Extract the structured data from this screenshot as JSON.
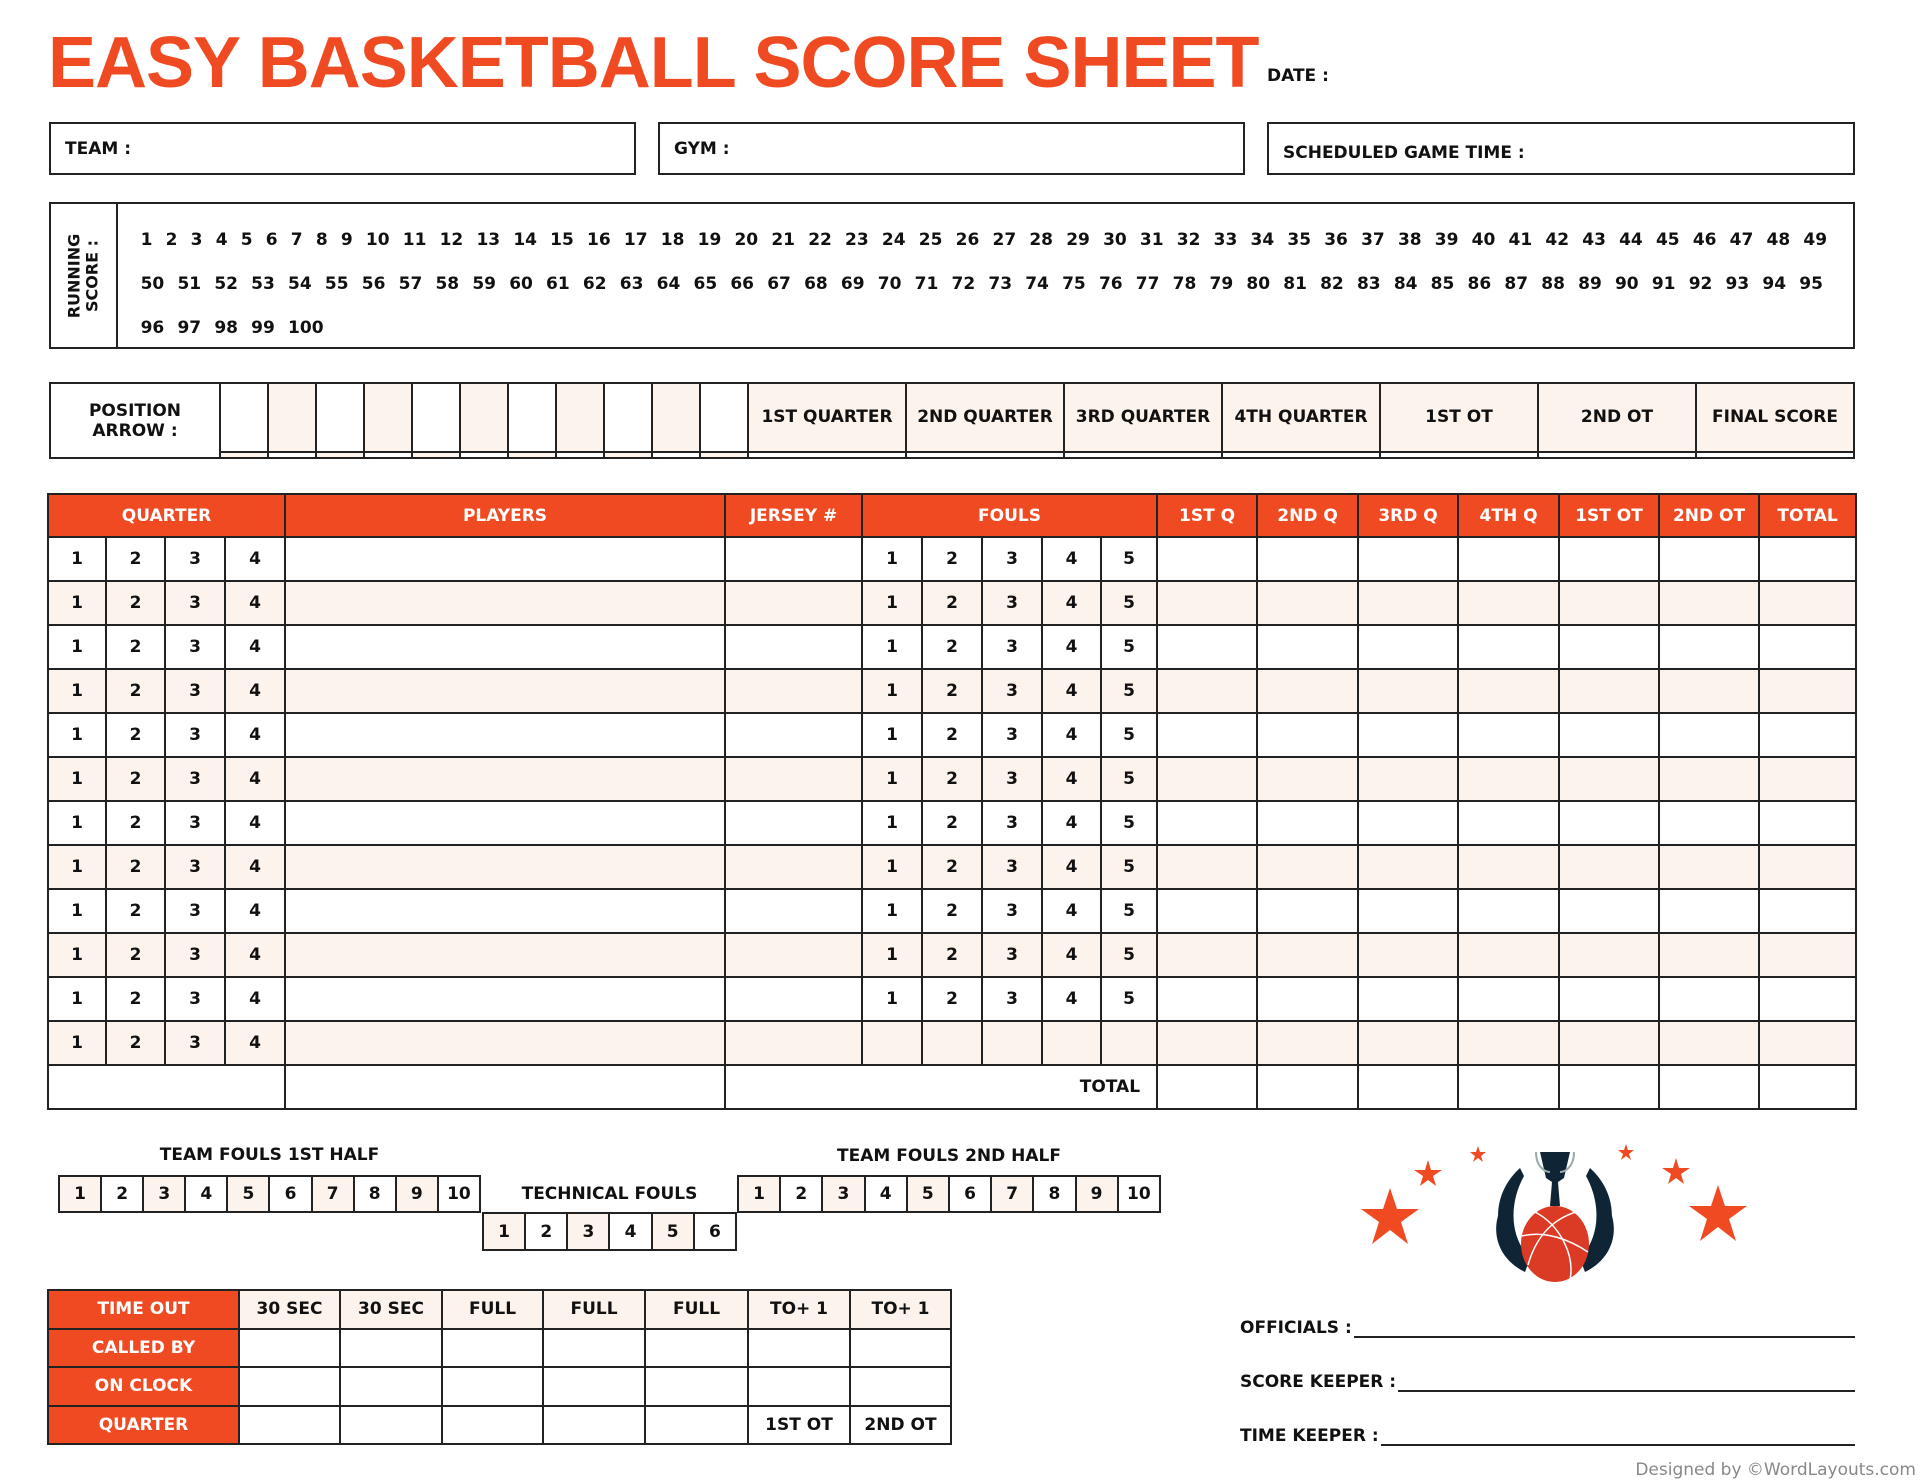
{
  "title": "EASY BASKETBALL SCORE SHEET",
  "date_label": "DATE :",
  "team_label": "TEAM :",
  "gym_label": "GYM :",
  "scheduled_label": "SCHEDULED GAME TIME :",
  "running_score": {
    "label_line1": "RUNNING",
    "label_line2": "SCORE :",
    "max": 100
  },
  "position_arrow": {
    "label_line1": "POSITION",
    "label_line2": "ARROW :",
    "cells": 11,
    "periods": [
      "1ST QUARTER",
      "2ND QUARTER",
      "3RD QUARTER",
      "4TH QUARTER",
      "1ST OT",
      "2ND OT",
      "FINAL SCORE"
    ]
  },
  "main_table": {
    "headers": {
      "quarter": "QUARTER",
      "players": "PLAYERS",
      "jersey": "JERSEY #",
      "fouls": "FOULS",
      "periods": [
        "1ST Q",
        "2ND Q",
        "3RD Q",
        "4TH Q",
        "1ST OT",
        "2ND OT",
        "TOTAL"
      ]
    },
    "quarter_numbers": [
      "1",
      "2",
      "3",
      "4"
    ],
    "foul_numbers": [
      "1",
      "2",
      "3",
      "4",
      "5"
    ],
    "row_count": 12,
    "rows_with_foul_numbers": 11,
    "total_label": "TOTAL"
  },
  "team_fouls": {
    "first_half_label": "TEAM FOULS 1ST HALF",
    "second_half_label": "TEAM FOULS 2ND HALF",
    "numbers": [
      "1",
      "2",
      "3",
      "4",
      "5",
      "6",
      "7",
      "8",
      "9",
      "10"
    ],
    "technical_label": "TECHNICAL FOULS",
    "technical_numbers": [
      "1",
      "2",
      "3",
      "4",
      "5",
      "6"
    ]
  },
  "timeout": {
    "row_labels": [
      "TIME OUT",
      "CALLED BY",
      "ON CLOCK",
      "QUARTER"
    ],
    "columns": [
      "30 SEC",
      "30 SEC",
      "FULL",
      "FULL",
      "FULL",
      "TO+ 1",
      "TO+ 1"
    ],
    "quarter_row": [
      "",
      "",
      "",
      "",
      "",
      "1ST OT",
      "2ND OT"
    ]
  },
  "signatures": {
    "officials": "OFFICIALS :",
    "score_keeper": "SCORE KEEPER :",
    "time_keeper": "TIME KEEPER :"
  },
  "footer": "Designed by ©WordLayouts.com",
  "colors": {
    "accent": "#f04a23",
    "shade": "#fdf3ed",
    "logo_navy": "#0f2536",
    "ball": "#db3a24"
  }
}
